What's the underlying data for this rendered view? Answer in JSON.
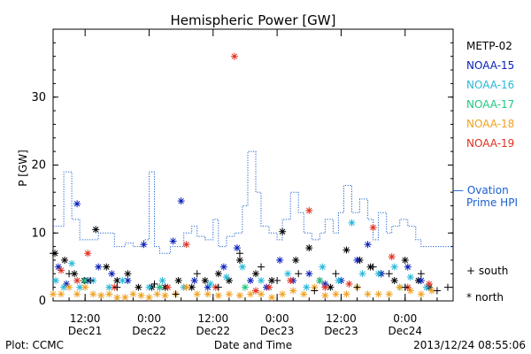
{
  "chart_data": {
    "type": "scatter",
    "title": "Hemispheric Power [GW]",
    "xlabel": "Date and Time",
    "ylabel": "P [GW]",
    "xlim": [
      "2013-12-21T06:00",
      "2013-12-24T09:00"
    ],
    "ylim": [
      0,
      40
    ],
    "grid": false,
    "legend_placement": "right",
    "x_ticks": [
      {
        "x": "2013-12-21T12:00",
        "line1": "12:00",
        "line2": "Dec21"
      },
      {
        "x": "2013-12-22T00:00",
        "line1": "0:00",
        "line2": "Dec22"
      },
      {
        "x": "2013-12-22T12:00",
        "line1": "12:00",
        "line2": "Dec22"
      },
      {
        "x": "2013-12-23T00:00",
        "line1": "0:00",
        "line2": "Dec23"
      },
      {
        "x": "2013-12-23T12:00",
        "line1": "12:00",
        "line2": "Dec23"
      },
      {
        "x": "2013-12-24T00:00",
        "line1": "0:00",
        "line2": "Dec24"
      }
    ],
    "y_ticks": [
      0,
      10,
      20,
      30
    ],
    "series": [
      {
        "name": "METP-02",
        "color": "#000000",
        "marker": "star",
        "points": [
          [
            "2013-12-21T06:20",
            7
          ],
          [
            "2013-12-21T08:10",
            6
          ],
          [
            "2013-12-21T10:00",
            4
          ],
          [
            "2013-12-21T11:50",
            3
          ],
          [
            "2013-12-21T14:00",
            10.5
          ],
          [
            "2013-12-21T16:00",
            5
          ],
          [
            "2013-12-21T18:00",
            3
          ],
          [
            "2013-12-21T20:00",
            4
          ],
          [
            "2013-12-21T22:00",
            2
          ],
          [
            "2013-12-22T00:30",
            2
          ],
          [
            "2013-12-22T03:00",
            2
          ],
          [
            "2013-12-22T05:30",
            3
          ],
          [
            "2013-12-22T08:00",
            2
          ],
          [
            "2013-12-22T10:30",
            3
          ],
          [
            "2013-12-22T13:00",
            4
          ],
          [
            "2013-12-22T15:00",
            3
          ],
          [
            "2013-12-22T17:00",
            6
          ],
          [
            "2013-12-22T20:00",
            4
          ],
          [
            "2013-12-22T23:00",
            3
          ],
          [
            "2013-12-23T01:00",
            10.2
          ],
          [
            "2013-12-23T03:30",
            6
          ],
          [
            "2013-12-23T06:00",
            7.8
          ],
          [
            "2013-12-23T08:00",
            3
          ],
          [
            "2013-12-23T10:00",
            2
          ],
          [
            "2013-12-23T13:00",
            7.5
          ],
          [
            "2013-12-23T15:30",
            6
          ],
          [
            "2013-12-23T17:30",
            5
          ],
          [
            "2013-12-23T19:30",
            4
          ],
          [
            "2013-12-23T22:00",
            3
          ],
          [
            "2013-12-24T00:00",
            6
          ],
          [
            "2013-12-24T02:30",
            3
          ],
          [
            "2013-12-24T04:30",
            2
          ]
        ]
      },
      {
        "name": "NOAA-15",
        "color": "#0a20b8",
        "marker": "star",
        "points": [
          [
            "2013-12-21T07:00",
            5
          ],
          [
            "2013-12-21T08:30",
            2.5
          ],
          [
            "2013-12-21T10:30",
            14.3
          ],
          [
            "2013-12-21T12:30",
            3
          ],
          [
            "2013-12-21T14:30",
            5
          ],
          [
            "2013-12-21T17:00",
            4
          ],
          [
            "2013-12-21T20:00",
            3
          ],
          [
            "2013-12-21T23:00",
            8.3
          ],
          [
            "2013-12-22T02:00",
            2
          ],
          [
            "2013-12-22T04:30",
            8.8
          ],
          [
            "2013-12-22T06:00",
            14.7
          ],
          [
            "2013-12-22T08:30",
            3
          ],
          [
            "2013-12-22T11:00",
            2
          ],
          [
            "2013-12-22T14:00",
            5
          ],
          [
            "2013-12-22T16:30",
            7.8
          ],
          [
            "2013-12-22T19:00",
            3
          ],
          [
            "2013-12-22T22:00",
            2
          ],
          [
            "2013-12-23T00:30",
            6
          ],
          [
            "2013-12-23T03:00",
            3
          ],
          [
            "2013-12-23T06:00",
            4
          ],
          [
            "2013-12-23T09:00",
            2.5
          ],
          [
            "2013-12-23T12:00",
            3
          ],
          [
            "2013-12-23T15:00",
            6
          ],
          [
            "2013-12-23T17:00",
            8.3
          ],
          [
            "2013-12-23T19:30",
            4
          ],
          [
            "2013-12-24T00:30",
            5
          ],
          [
            "2013-12-24T03:00",
            3
          ]
        ]
      },
      {
        "name": "NOAA-16",
        "color": "#29b8d8",
        "marker": "star",
        "points": [
          [
            "2013-12-21T06:30",
            3
          ],
          [
            "2013-12-21T08:00",
            2
          ],
          [
            "2013-12-21T09:30",
            5.5
          ],
          [
            "2013-12-21T11:00",
            2
          ],
          [
            "2013-12-21T13:30",
            3
          ],
          [
            "2013-12-21T16:30",
            2
          ],
          [
            "2013-12-21T19:00",
            3
          ],
          [
            "2013-12-22T00:00",
            2
          ],
          [
            "2013-12-22T02:30",
            3
          ],
          [
            "2013-12-22T06:30",
            2
          ],
          [
            "2013-12-22T11:30",
            2.5
          ],
          [
            "2013-12-22T14:30",
            3.5
          ],
          [
            "2013-12-22T17:30",
            5
          ],
          [
            "2013-12-22T21:00",
            3
          ],
          [
            "2013-12-23T02:00",
            4
          ],
          [
            "2013-12-23T05:30",
            2
          ],
          [
            "2013-12-23T08:30",
            5
          ],
          [
            "2013-12-23T11:30",
            3
          ],
          [
            "2013-12-23T14:00",
            11.5
          ],
          [
            "2013-12-23T16:00",
            4
          ],
          [
            "2013-12-23T19:00",
            4
          ],
          [
            "2013-12-23T22:00",
            5
          ],
          [
            "2013-12-24T01:00",
            3.5
          ],
          [
            "2013-12-24T04:00",
            2
          ]
        ]
      },
      {
        "name": "NOAA-17",
        "color": "#20c880",
        "marker": "star",
        "points": [
          [
            "2013-12-21T12:00",
            3
          ],
          [
            "2013-12-22T02:00",
            2
          ],
          [
            "2013-12-22T18:00",
            2
          ],
          [
            "2013-12-23T08:00",
            3
          ],
          [
            "2013-12-23T23:00",
            2
          ]
        ]
      },
      {
        "name": "NOAA-18",
        "color": "#f0a020",
        "marker": "star",
        "points": [
          [
            "2013-12-21T06:00",
            1
          ],
          [
            "2013-12-21T07:30",
            1
          ],
          [
            "2013-12-21T09:00",
            2
          ],
          [
            "2013-12-21T10:30",
            1
          ],
          [
            "2013-12-21T12:00",
            2
          ],
          [
            "2013-12-21T13:30",
            1
          ],
          [
            "2013-12-21T15:00",
            0.8
          ],
          [
            "2013-12-21T16:30",
            1
          ],
          [
            "2013-12-21T18:00",
            0.5
          ],
          [
            "2013-12-21T19:30",
            0.5
          ],
          [
            "2013-12-21T21:00",
            1
          ],
          [
            "2013-12-21T22:30",
            0.8
          ],
          [
            "2013-12-22T00:00",
            0.5
          ],
          [
            "2013-12-22T01:30",
            1
          ],
          [
            "2013-12-22T03:00",
            0.8
          ],
          [
            "2013-12-22T05:00",
            1
          ],
          [
            "2013-12-22T07:00",
            2
          ],
          [
            "2013-12-22T09:00",
            1
          ],
          [
            "2013-12-22T11:00",
            1
          ],
          [
            "2013-12-22T13:00",
            0.8
          ],
          [
            "2013-12-22T15:00",
            1
          ],
          [
            "2013-12-22T17:00",
            0.8
          ],
          [
            "2013-12-22T19:00",
            1
          ],
          [
            "2013-12-22T21:00",
            1
          ],
          [
            "2013-12-22T23:00",
            0.5
          ],
          [
            "2013-12-23T01:00",
            1
          ],
          [
            "2013-12-23T03:00",
            1.5
          ],
          [
            "2013-12-23T05:00",
            1
          ],
          [
            "2013-12-23T07:00",
            2
          ],
          [
            "2013-12-23T09:00",
            0.8
          ],
          [
            "2013-12-23T11:00",
            1
          ],
          [
            "2013-12-23T13:00",
            1
          ],
          [
            "2013-12-23T15:00",
            2
          ],
          [
            "2013-12-23T17:00",
            1
          ],
          [
            "2013-12-23T19:00",
            1
          ],
          [
            "2013-12-23T21:00",
            1
          ],
          [
            "2013-12-23T23:00",
            2
          ],
          [
            "2013-12-24T01:00",
            1.5
          ],
          [
            "2013-12-24T03:00",
            1
          ],
          [
            "2013-12-24T05:00",
            1.5
          ]
        ]
      },
      {
        "name": "NOAA-19",
        "color": "#e03020",
        "marker": "star",
        "points": [
          [
            "2013-12-21T07:30",
            4.5
          ],
          [
            "2013-12-21T10:30",
            3
          ],
          [
            "2013-12-21T12:30",
            7
          ],
          [
            "2013-12-21T17:30",
            2
          ],
          [
            "2013-12-22T03:30",
            2
          ],
          [
            "2013-12-22T07:00",
            8.3
          ],
          [
            "2013-12-22T12:30",
            2
          ],
          [
            "2013-12-22T16:00",
            36
          ],
          [
            "2013-12-22T20:00",
            1.5
          ],
          [
            "2013-12-22T22:30",
            2
          ],
          [
            "2013-12-23T02:30",
            3
          ],
          [
            "2013-12-23T06:00",
            13.3
          ],
          [
            "2013-12-23T09:00",
            2
          ],
          [
            "2013-12-23T13:30",
            2.5
          ],
          [
            "2013-12-23T18:00",
            10.8
          ],
          [
            "2013-12-23T21:30",
            6.5
          ],
          [
            "2013-12-24T00:30",
            2
          ],
          [
            "2013-12-24T04:30",
            2.5
          ]
        ]
      },
      {
        "name": "Ovation Prime HPI",
        "color": "#1a5fd0",
        "style": "dotted-step",
        "points": [
          [
            "2013-12-21T06:00",
            11
          ],
          [
            "2013-12-21T08:00",
            19
          ],
          [
            "2013-12-21T09:30",
            12
          ],
          [
            "2013-12-21T11:00",
            9
          ],
          [
            "2013-12-21T13:00",
            9
          ],
          [
            "2013-12-21T14:30",
            10
          ],
          [
            "2013-12-21T17:30",
            8
          ],
          [
            "2013-12-21T19:30",
            8.5
          ],
          [
            "2013-12-21T21:00",
            8
          ],
          [
            "2013-12-21T23:00",
            9
          ],
          [
            "2013-12-22T00:00",
            19
          ],
          [
            "2013-12-22T01:00",
            8
          ],
          [
            "2013-12-22T02:00",
            7
          ],
          [
            "2013-12-22T04:00",
            8
          ],
          [
            "2013-12-22T06:30",
            10
          ],
          [
            "2013-12-22T08:00",
            11
          ],
          [
            "2013-12-22T09:00",
            9.5
          ],
          [
            "2013-12-22T10:30",
            9
          ],
          [
            "2013-12-22T12:00",
            12
          ],
          [
            "2013-12-22T13:00",
            8
          ],
          [
            "2013-12-22T14:30",
            9.5
          ],
          [
            "2013-12-22T16:00",
            10
          ],
          [
            "2013-12-22T17:30",
            14
          ],
          [
            "2013-12-22T18:30",
            22
          ],
          [
            "2013-12-22T20:00",
            16
          ],
          [
            "2013-12-22T21:00",
            11
          ],
          [
            "2013-12-22T22:30",
            10
          ],
          [
            "2013-12-23T00:00",
            9
          ],
          [
            "2013-12-23T01:00",
            12
          ],
          [
            "2013-12-23T02:30",
            16
          ],
          [
            "2013-12-23T04:00",
            13
          ],
          [
            "2013-12-23T05:00",
            10
          ],
          [
            "2013-12-23T06:30",
            9
          ],
          [
            "2013-12-23T08:00",
            10
          ],
          [
            "2013-12-23T09:00",
            12
          ],
          [
            "2013-12-23T10:30",
            10
          ],
          [
            "2013-12-23T11:30",
            13
          ],
          [
            "2013-12-23T12:30",
            17
          ],
          [
            "2013-12-23T14:00",
            13
          ],
          [
            "2013-12-23T15:30",
            15
          ],
          [
            "2013-12-23T17:00",
            12
          ],
          [
            "2013-12-23T18:00",
            9
          ],
          [
            "2013-12-23T19:00",
            13
          ],
          [
            "2013-12-23T20:30",
            10
          ],
          [
            "2013-12-23T21:30",
            11
          ],
          [
            "2013-12-23T23:00",
            12
          ],
          [
            "2013-12-24T00:30",
            11
          ],
          [
            "2013-12-24T02:00",
            9
          ],
          [
            "2013-12-24T03:00",
            8
          ],
          [
            "2013-12-24T05:00",
            8
          ],
          [
            "2013-12-24T07:00",
            8
          ]
        ]
      },
      {
        "name": "south",
        "color": "#000000",
        "marker": "plus",
        "points": [
          [
            "2013-12-21T06:00",
            7
          ],
          [
            "2013-12-21T09:00",
            4
          ],
          [
            "2013-12-21T13:00",
            3
          ],
          [
            "2013-12-21T18:00",
            2
          ],
          [
            "2013-12-22T01:00",
            2.5
          ],
          [
            "2013-12-22T05:00",
            1
          ],
          [
            "2013-12-22T09:00",
            4
          ],
          [
            "2013-12-22T13:00",
            2
          ],
          [
            "2013-12-22T17:00",
            7
          ],
          [
            "2013-12-22T21:00",
            5
          ],
          [
            "2013-12-23T00:00",
            3
          ],
          [
            "2013-12-23T04:00",
            4
          ],
          [
            "2013-12-23T07:00",
            1.5
          ],
          [
            "2013-12-23T11:00",
            4
          ],
          [
            "2013-12-23T15:00",
            2
          ],
          [
            "2013-12-23T18:00",
            5
          ],
          [
            "2013-12-23T21:00",
            4
          ],
          [
            "2013-12-24T00:00",
            2
          ],
          [
            "2013-12-24T03:00",
            4
          ],
          [
            "2013-12-24T06:00",
            1.5
          ],
          [
            "2013-12-24T08:00",
            2
          ]
        ]
      }
    ],
    "legend": [
      {
        "label": "METP-02",
        "color": "#000000"
      },
      {
        "label": "NOAA-15",
        "color": "#0a20b8"
      },
      {
        "label": "NOAA-16",
        "color": "#29b8d8"
      },
      {
        "label": "NOAA-17",
        "color": "#20c880"
      },
      {
        "label": "NOAA-18",
        "color": "#f0a020"
      },
      {
        "label": "NOAA-19",
        "color": "#e03020"
      }
    ],
    "model_legend": {
      "label_line1": "— Ovation",
      "label_line2": "Prime HPI",
      "color": "#1a5fd0"
    },
    "marker_legend": [
      {
        "symbol": "+",
        "label": "south"
      },
      {
        "symbol": "*",
        "label": "north"
      }
    ]
  },
  "footer": {
    "left": "Plot: CCMC",
    "center": "Date and Time",
    "right": "2013/12/24 08:55:06"
  }
}
